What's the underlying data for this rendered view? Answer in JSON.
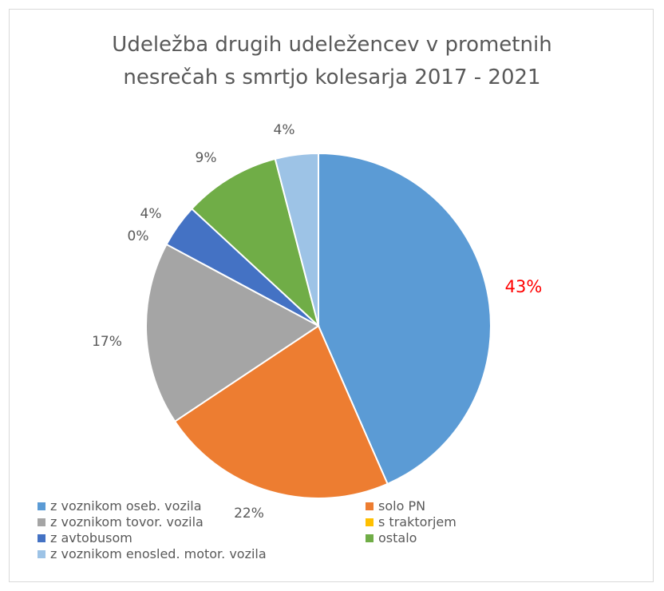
{
  "chart_data": {
    "type": "pie",
    "title_lines": [
      "Udeležba drugih udeležencev v prometnih",
      "nesrečah s smrtjo kolesarja 2017 - 2021"
    ],
    "slices": [
      {
        "name": "z voznikom oseb. vozila",
        "value": 43,
        "label": "43%",
        "color": "#5b9bd5",
        "label_color": "#ff0000"
      },
      {
        "name": "solo PN",
        "value": 22,
        "label": "22%",
        "color": "#ed7d31",
        "label_color": "#595959"
      },
      {
        "name": "z voznikom tovor. vozila",
        "value": 17,
        "label": "17%",
        "color": "#a5a5a5",
        "label_color": "#595959"
      },
      {
        "name": "s traktorjem",
        "value": 0,
        "label": "0%",
        "color": "#ffc000",
        "label_color": "#595959"
      },
      {
        "name": "z avtobusom",
        "value": 4,
        "label": "4%",
        "color": "#4472c4",
        "label_color": "#595959"
      },
      {
        "name": "ostalo",
        "value": 9,
        "label": "9%",
        "color": "#70ad47",
        "label_color": "#595959"
      },
      {
        "name": "z voznikom enosled. motor. vozila",
        "value": 4,
        "label": "4%",
        "color": "#9dc3e6",
        "label_color": "#595959"
      }
    ],
    "legend_order": [
      0,
      1,
      2,
      3,
      4,
      5,
      6
    ],
    "legend_position": "bottom"
  }
}
